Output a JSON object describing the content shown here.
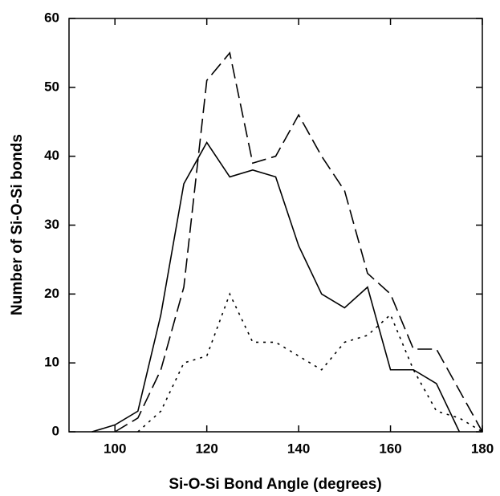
{
  "chart_data": {
    "type": "line",
    "x_label": "Si-O-Si Bond Angle (degrees)",
    "y_label": "Number of Si-O-Si bonds",
    "x": [
      95,
      100,
      105,
      110,
      115,
      120,
      125,
      130,
      135,
      140,
      145,
      150,
      155,
      160,
      165,
      170,
      175,
      180
    ],
    "series": [
      {
        "color": "#000000",
        "dash": "solid",
        "values": [
          0,
          1,
          3,
          17,
          36,
          42,
          37,
          38,
          37,
          27,
          20,
          18,
          21,
          9,
          9,
          7,
          0,
          null
        ]
      },
      {
        "color": "#000000",
        "dash": "dashed",
        "values": [
          null,
          0,
          2,
          9,
          21,
          51,
          55,
          39,
          40,
          46,
          40,
          35,
          23,
          20,
          12,
          12,
          6,
          0
        ]
      },
      {
        "color": "#000000",
        "dash": "dotted",
        "values": [
          null,
          null,
          0,
          3,
          10,
          11,
          20,
          13,
          13,
          11,
          9,
          13,
          14,
          17,
          9,
          3,
          2,
          0
        ]
      }
    ],
    "xlim": [
      90,
      180
    ],
    "xticks": [
      100,
      120,
      140,
      160,
      180
    ],
    "ylim": [
      0,
      60
    ],
    "yticks": [
      0,
      10,
      20,
      30,
      40,
      50,
      60
    ],
    "grid": false
  }
}
